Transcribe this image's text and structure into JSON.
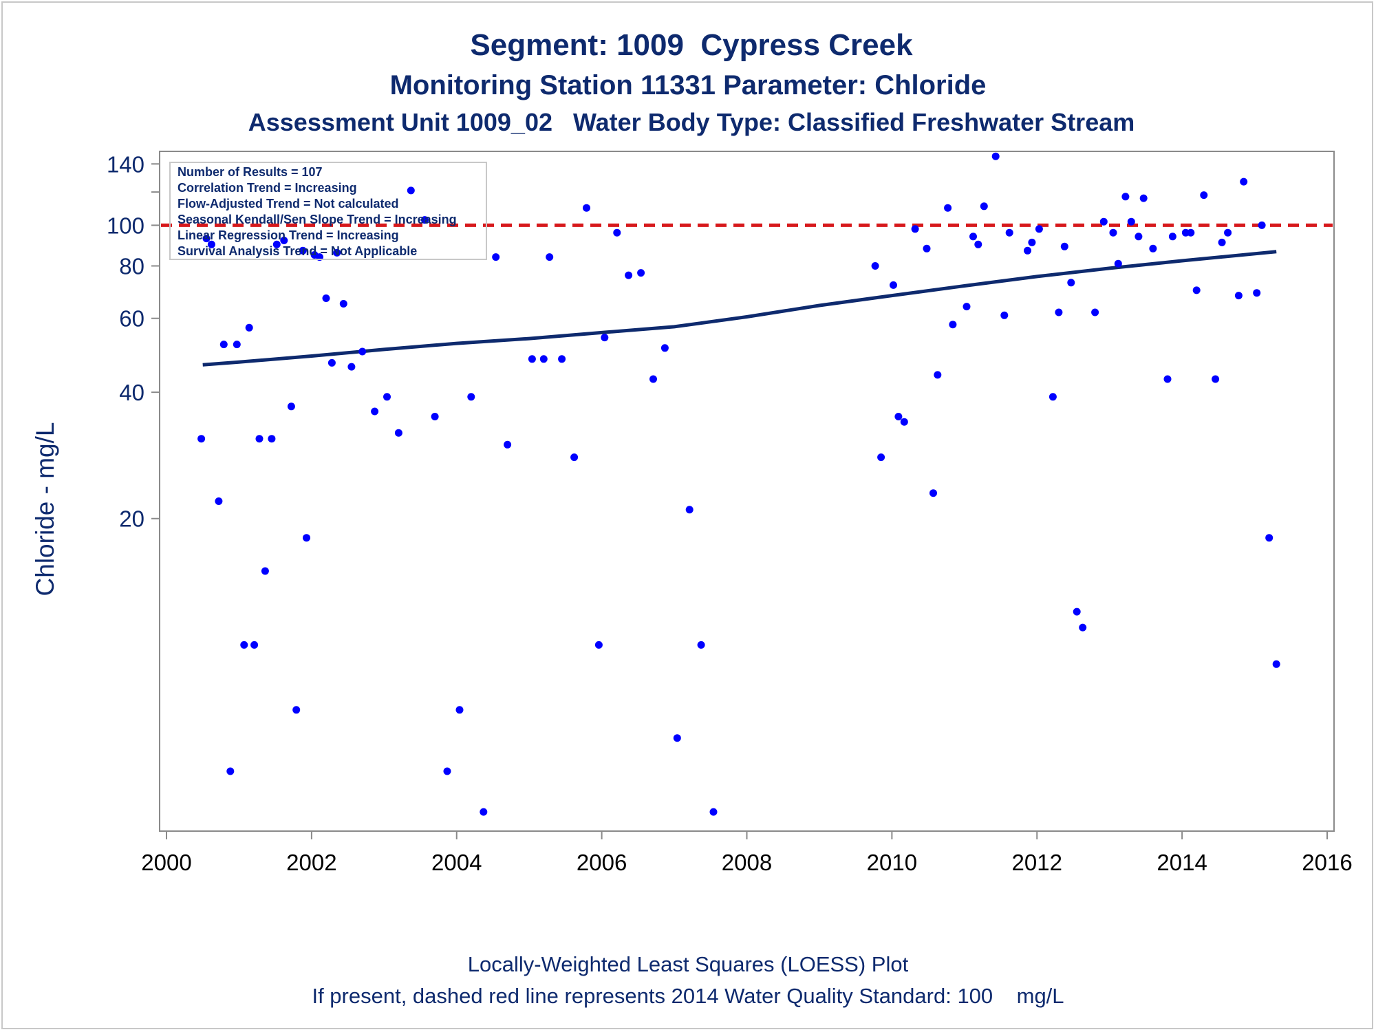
{
  "chart_data": {
    "type": "scatter",
    "title": "Segment: 1009  Cypress Creek",
    "subtitle": "Monitoring Station 11331 Parameter: Chloride",
    "subtitle2": "Assessment Unit 1009_02   Water Body Type: Classified Freshwater Stream",
    "ylabel": "Chloride - mg/L",
    "footnote1": "Locally-Weighted Least Squares (LOESS) Plot",
    "footnote2": "If present, dashed red line represents 2014 Water Quality Standard: 100    mg/L",
    "yscale": "log",
    "xlim": [
      2000,
      2016
    ],
    "ylim": [
      3.6,
      150
    ],
    "x_ticks": [
      "2000",
      "2002",
      "2004",
      "2006",
      "2008",
      "2010",
      "2012",
      "2014",
      "2016"
    ],
    "y_ticks": [
      {
        "value": 20,
        "label": "20"
      },
      {
        "value": 40,
        "label": "40"
      },
      {
        "value": 60,
        "label": "60"
      },
      {
        "value": 80,
        "label": "80"
      },
      {
        "value": 100,
        "label": "100"
      },
      {
        "value": 140,
        "label": "140"
      }
    ],
    "y_minor_ticks": [
      120
    ],
    "standard_line": {
      "value": 100,
      "color": "#d7191c",
      "style": "dashed"
    },
    "stats_box": [
      "Number of Results = 107",
      "Correlation Trend = Increasing",
      "Flow-Adjusted Trend = Not calculated",
      "Seasonal Kendall/Sen Slope Trend = Increasing",
      "Linear Regression Trend = Increasing",
      "Survival Analysis Trend = Not Applicable"
    ],
    "colors": {
      "points": "#0000ff",
      "trend": "#0e2a6e",
      "text": "#0e2a6e",
      "axis": "#8a8a8a"
    },
    "grid": false,
    "series": [
      {
        "type": "scatter",
        "points": [
          [
            2000.48,
            31
          ],
          [
            2000.55,
            93
          ],
          [
            2000.62,
            90
          ],
          [
            2000.72,
            22
          ],
          [
            2000.79,
            52
          ],
          [
            2000.88,
            5
          ],
          [
            2000.97,
            52
          ],
          [
            2001.07,
            10
          ],
          [
            2001.14,
            57
          ],
          [
            2001.21,
            10
          ],
          [
            2001.28,
            31
          ],
          [
            2001.36,
            15
          ],
          [
            2001.45,
            31
          ],
          [
            2001.52,
            90
          ],
          [
            2001.62,
            92
          ],
          [
            2001.72,
            37
          ],
          [
            2001.79,
            7
          ],
          [
            2001.88,
            87
          ],
          [
            2001.93,
            18
          ],
          [
            2002.04,
            85
          ],
          [
            2002.11,
            84
          ],
          [
            2002.2,
            67
          ],
          [
            2002.28,
            47
          ],
          [
            2002.35,
            86
          ],
          [
            2002.44,
            65
          ],
          [
            2002.55,
            46
          ],
          [
            2002.7,
            50
          ],
          [
            2002.87,
            36
          ],
          [
            2003.04,
            39
          ],
          [
            2003.2,
            32
          ],
          [
            2003.37,
            121
          ],
          [
            2003.56,
            103
          ],
          [
            2003.7,
            35
          ],
          [
            2003.87,
            5
          ],
          [
            2004.04,
            7
          ],
          [
            2004.2,
            39
          ],
          [
            2004.37,
            4
          ],
          [
            2004.54,
            84
          ],
          [
            2004.7,
            30
          ],
          [
            2005.04,
            48
          ],
          [
            2005.2,
            48
          ],
          [
            2005.28,
            84
          ],
          [
            2005.45,
            48
          ],
          [
            2005.62,
            28
          ],
          [
            2005.79,
            110
          ],
          [
            2005.96,
            10
          ],
          [
            2006.04,
            54
          ],
          [
            2006.21,
            96
          ],
          [
            2006.37,
            76
          ],
          [
            2006.54,
            77
          ],
          [
            2006.71,
            43
          ],
          [
            2006.87,
            51
          ],
          [
            2007.04,
            6
          ],
          [
            2007.21,
            21
          ],
          [
            2007.37,
            10
          ],
          [
            2007.54,
            4
          ],
          [
            2009.77,
            80
          ],
          [
            2009.85,
            28
          ],
          [
            2010.02,
            72
          ],
          [
            2010.09,
            35
          ],
          [
            2010.17,
            34
          ],
          [
            2010.32,
            98
          ],
          [
            2010.48,
            88
          ],
          [
            2010.57,
            23
          ],
          [
            2010.63,
            44
          ],
          [
            2010.77,
            110
          ],
          [
            2010.84,
            58
          ],
          [
            2011.03,
            64
          ],
          [
            2011.12,
            94
          ],
          [
            2011.19,
            90
          ],
          [
            2011.27,
            111
          ],
          [
            2011.43,
            146
          ],
          [
            2011.55,
            61
          ],
          [
            2011.62,
            96
          ],
          [
            2011.87,
            87
          ],
          [
            2011.93,
            91
          ],
          [
            2012.03,
            98
          ],
          [
            2012.22,
            39
          ],
          [
            2012.3,
            62
          ],
          [
            2012.38,
            89
          ],
          [
            2012.47,
            73
          ],
          [
            2012.55,
            12
          ],
          [
            2012.63,
            11
          ],
          [
            2012.8,
            62
          ],
          [
            2012.92,
            102
          ],
          [
            2013.05,
            96
          ],
          [
            2013.12,
            81
          ],
          [
            2013.22,
            117
          ],
          [
            2013.3,
            102
          ],
          [
            2013.4,
            94
          ],
          [
            2013.47,
            116
          ],
          [
            2013.6,
            88
          ],
          [
            2013.8,
            43
          ],
          [
            2013.87,
            94
          ],
          [
            2014.05,
            96
          ],
          [
            2014.12,
            96
          ],
          [
            2014.2,
            70
          ],
          [
            2014.3,
            118
          ],
          [
            2014.46,
            43
          ],
          [
            2014.55,
            91
          ],
          [
            2014.63,
            96
          ],
          [
            2014.78,
            68
          ],
          [
            2014.85,
            127
          ],
          [
            2015.03,
            69
          ],
          [
            2015.1,
            100
          ],
          [
            2015.2,
            18
          ],
          [
            2015.3,
            9
          ]
        ]
      },
      {
        "type": "line",
        "name": "LOESS",
        "points": [
          [
            2000.5,
            46.5
          ],
          [
            2001,
            47.2
          ],
          [
            2002,
            48.8
          ],
          [
            2003,
            50.6
          ],
          [
            2004,
            52.3
          ],
          [
            2005,
            53.7
          ],
          [
            2006,
            55.5
          ],
          [
            2007,
            57.3
          ],
          [
            2008,
            60.5
          ],
          [
            2009,
            64.4
          ],
          [
            2010,
            68.0
          ],
          [
            2011,
            71.7
          ],
          [
            2012,
            75.5
          ],
          [
            2013,
            79.0
          ],
          [
            2014,
            82.3
          ],
          [
            2015.3,
            86.5
          ]
        ]
      }
    ]
  }
}
